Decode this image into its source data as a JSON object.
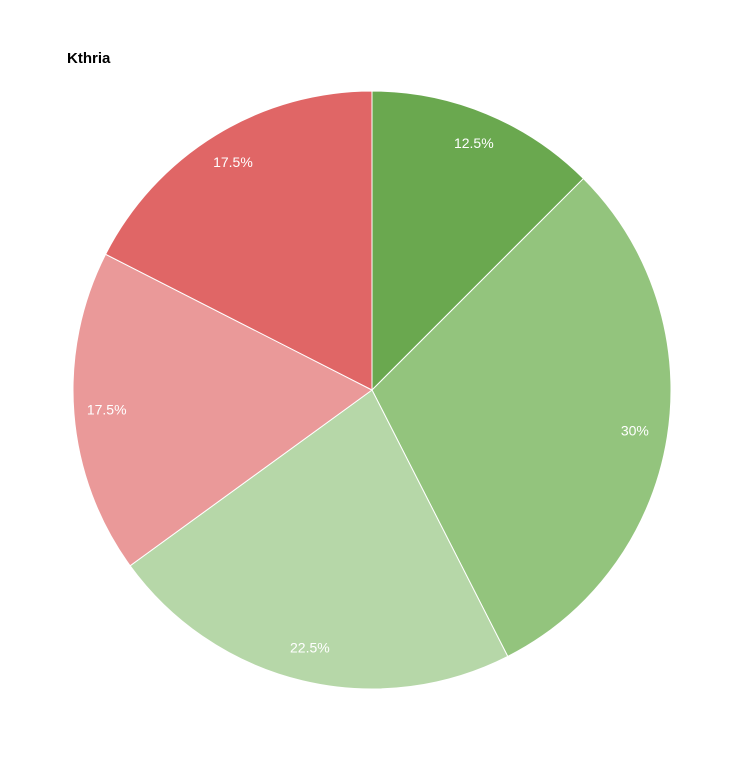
{
  "chart_data": {
    "type": "pie",
    "title": "Kthria",
    "values": [
      12.5,
      30,
      22.5,
      17.5,
      17.5
    ],
    "value_labels": [
      "12.5%",
      "30%",
      "22.5%",
      "17.5%",
      "17.5%"
    ],
    "colors": [
      "#6aa84f",
      "#93c47d",
      "#b6d7a8",
      "#ea9999",
      "#e06666"
    ]
  }
}
